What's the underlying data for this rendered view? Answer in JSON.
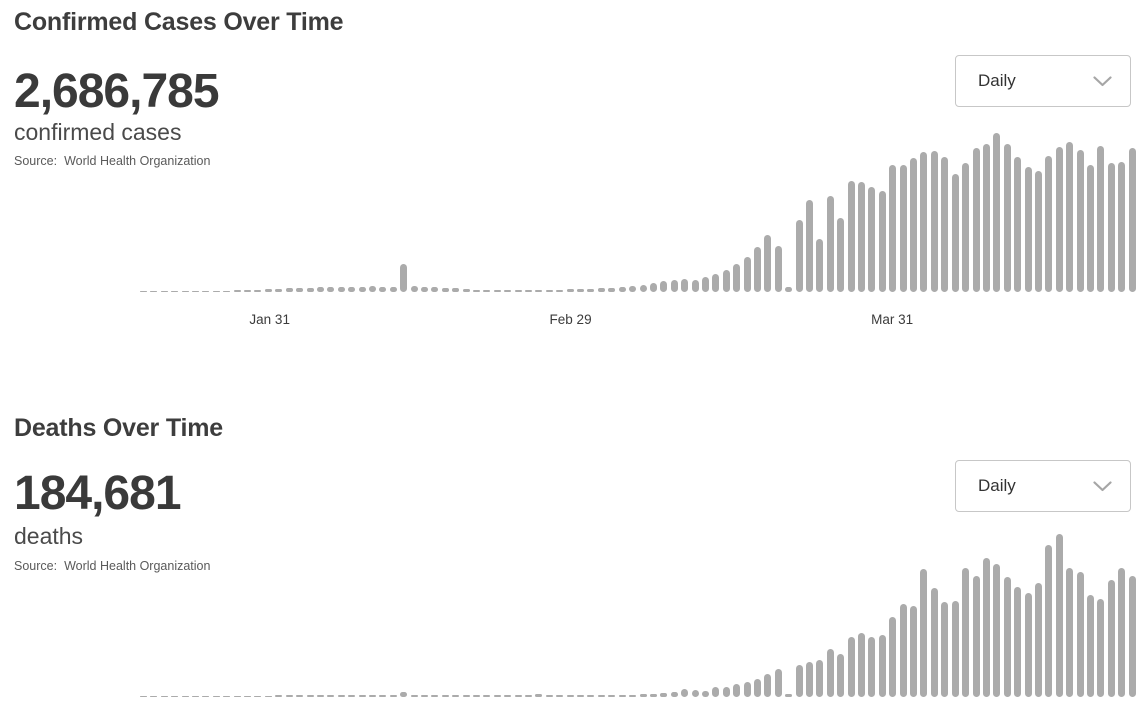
{
  "colors": {
    "bar": "#ababab",
    "title_text": "#3d3d3d",
    "stat_text": "#3a3a3a",
    "unit_text": "#4a4a4a",
    "source_text": "#5a5a5a",
    "dropdown_border": "#c7c7c7",
    "chevron": "#a6a6a6"
  },
  "sections": [
    {
      "title": "Confirmed Cases Over Time",
      "stat": {
        "value": "2,686,785",
        "label": "confirmed cases"
      },
      "source": {
        "label": "Source:",
        "name": "World Health Organization"
      },
      "interval_dropdown": {
        "selected": "Daily",
        "icon": "chevron-down-icon"
      },
      "chart_data": {
        "type": "bar",
        "series_name": "daily new confirmed cases",
        "x_axis": {
          "start_date": "2020-01-19",
          "end_date": "2020-04-23",
          "unit": "day"
        },
        "x_tick_labels": [
          {
            "label": "Jan 31",
            "day_index": 12
          },
          {
            "label": "Feb 29",
            "day_index": 41
          },
          {
            "label": "Mar 31",
            "day_index": 72
          }
        ],
        "ylim": [
          0,
          96000
        ],
        "grid": false,
        "legend": false,
        "values": [
          300,
          300,
          300,
          600,
          600,
          600,
          600,
          900,
          900,
          1200,
          1200,
          1500,
          1800,
          2100,
          2400,
          2400,
          2700,
          3000,
          3000,
          3000,
          3000,
          3300,
          3600,
          3300,
          3000,
          16800,
          3600,
          3000,
          3000,
          2700,
          2400,
          1800,
          1500,
          1200,
          1200,
          1200,
          1200,
          1200,
          1200,
          1500,
          1500,
          1800,
          1800,
          2100,
          2400,
          2700,
          3000,
          3600,
          4200,
          5400,
          6600,
          7200,
          7800,
          7200,
          9000,
          10800,
          13200,
          16800,
          21000,
          27000,
          34200,
          27600,
          3000,
          43200,
          55200,
          31800,
          57600,
          44400,
          66600,
          66000,
          63000,
          60600,
          76200,
          76200,
          80400,
          84000,
          84600,
          81000,
          70800,
          77400,
          86400,
          88800,
          95400,
          88800,
          81000,
          75000,
          72600,
          81600,
          87000,
          90000,
          85200,
          76200,
          87600,
          77400,
          78000,
          86400
        ]
      }
    },
    {
      "title": "Deaths Over Time",
      "stat": {
        "value": "184,681",
        "label": "deaths"
      },
      "source": {
        "label": "Source:",
        "name": "World Health Organization"
      },
      "interval_dropdown": {
        "selected": "Daily",
        "icon": "chevron-down-icon"
      },
      "chart_data": {
        "type": "bar",
        "series_name": "daily new deaths",
        "x_axis": {
          "start_date": "2020-01-19",
          "end_date": "2020-04-23",
          "unit": "day"
        },
        "x_tick_labels": [],
        "ylim": [
          0,
          8500
        ],
        "grid": false,
        "legend": false,
        "values": [
          25,
          25,
          25,
          30,
          30,
          35,
          40,
          45,
          50,
          55,
          60,
          70,
          75,
          80,
          85,
          90,
          95,
          100,
          100,
          100,
          105,
          105,
          110,
          105,
          105,
          260,
          130,
          130,
          130,
          130,
          125,
          115,
          115,
          105,
          105,
          100,
          100,
          105,
          150,
          80,
          80,
          80,
          80,
          85,
          85,
          90,
          100,
          130,
          155,
          180,
          210,
          260,
          420,
          365,
          310,
          520,
          520,
          675,
          780,
          935,
          1195,
          1455,
          155,
          1665,
          1820,
          1925,
          2495,
          2235,
          3120,
          3330,
          3120,
          3225,
          4160,
          4835,
          4730,
          6655,
          5670,
          4940,
          4990,
          6710,
          6290,
          7230,
          6915,
          6240,
          5720,
          5410,
          5930,
          7905,
          8475,
          6710,
          6500,
          5305,
          5095,
          6085,
          6710,
          6290
        ]
      }
    }
  ]
}
